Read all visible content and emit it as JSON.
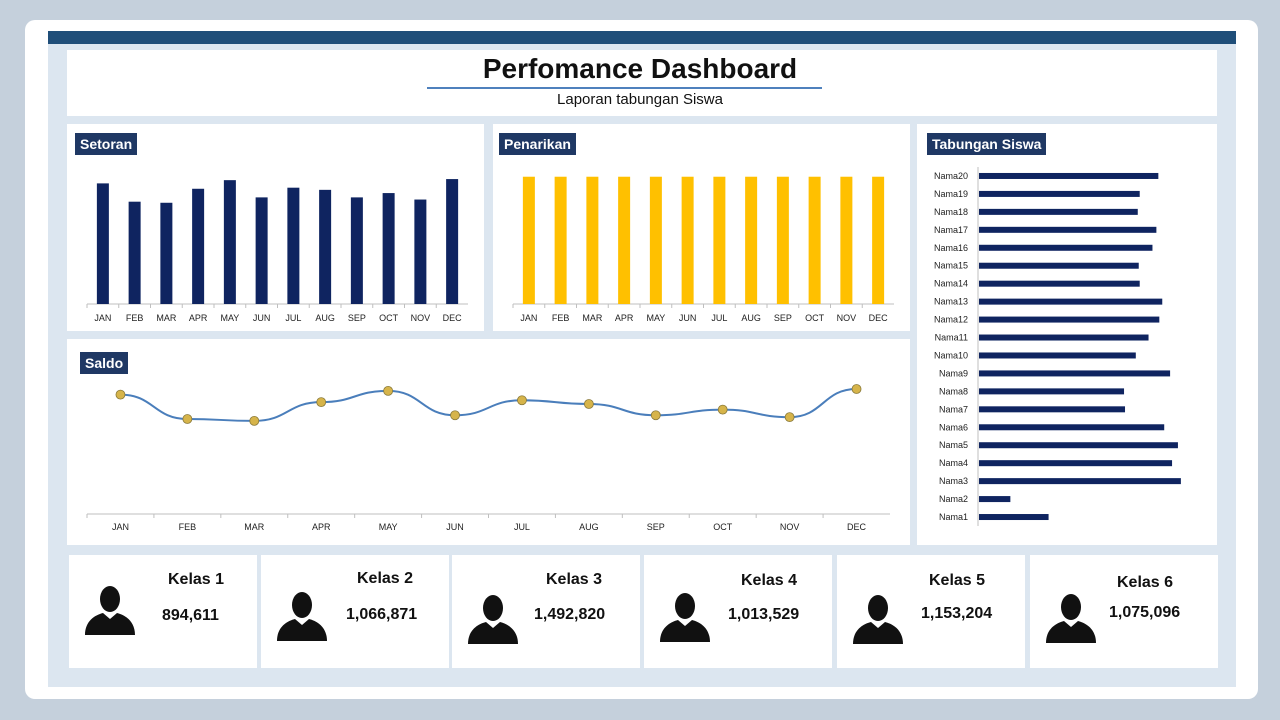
{
  "header": {
    "title": "Perfomance Dashboard",
    "subtitle": "Laporan tabungan Siswa"
  },
  "setoran": {
    "title": "Setoran",
    "color": "#0f2460",
    "chart_data": {
      "type": "bar",
      "categories": [
        "JAN",
        "FEB",
        "MAR",
        "APR",
        "MAY",
        "JUN",
        "JUL",
        "AUG",
        "SEP",
        "OCT",
        "NOV",
        "DEC"
      ],
      "values": [
        112,
        95,
        94,
        107,
        115,
        99,
        108,
        106,
        99,
        103,
        97,
        116
      ],
      "ylim": [
        0,
        130
      ]
    }
  },
  "penarikan": {
    "title": "Penarikan",
    "color": "#ffc000",
    "chart_data": {
      "type": "bar",
      "categories": [
        "JAN",
        "FEB",
        "MAR",
        "APR",
        "MAY",
        "JUN",
        "JUL",
        "AUG",
        "SEP",
        "OCT",
        "NOV",
        "DEC"
      ],
      "values": [
        100,
        100,
        100,
        100,
        100,
        100,
        100,
        100,
        100,
        100,
        100,
        100
      ],
      "ylim": [
        0,
        110
      ]
    }
  },
  "saldo": {
    "title": "Saldo",
    "line_color": "#4a7ebb",
    "marker_color": "#d6b44a",
    "chart_data": {
      "type": "line",
      "categories": [
        "JAN",
        "FEB",
        "MAR",
        "APR",
        "MAY",
        "JUN",
        "JUL",
        "AUG",
        "SEP",
        "OCT",
        "NOV",
        "DEC"
      ],
      "values": [
        89,
        76,
        75,
        85,
        91,
        78,
        86,
        84,
        78,
        81,
        77,
        92
      ],
      "ylim": [
        0,
        100
      ]
    }
  },
  "tabungan": {
    "title": "Tabungan  Siswa",
    "color": "#0f2460",
    "chart_data": {
      "type": "bar",
      "orientation": "horizontal",
      "categories": [
        "Nama20",
        "Nama19",
        "Nama18",
        "Nama17",
        "Nama16",
        "Nama15",
        "Nama14",
        "Nama13",
        "Nama12",
        "Nama11",
        "Nama10",
        "Nama9",
        "Nama8",
        "Nama7",
        "Nama6",
        "Nama5",
        "Nama4",
        "Nama3",
        "Nama2",
        "Nama1"
      ],
      "values": [
        183,
        164,
        162,
        181,
        177,
        163,
        164,
        187,
        184,
        173,
        160,
        195,
        148,
        149,
        189,
        203,
        197,
        206,
        32,
        71
      ],
      "xlim": [
        0,
        215
      ]
    }
  },
  "kelas": [
    {
      "label": "Kelas 1",
      "value": "894,611"
    },
    {
      "label": "Kelas 2",
      "value": "1,066,871"
    },
    {
      "label": "Kelas 3",
      "value": "1,492,820"
    },
    {
      "label": "Kelas 4",
      "value": "1,013,529"
    },
    {
      "label": "Kelas 5",
      "value": "1,153,204"
    },
    {
      "label": "Kelas 6",
      "value": "1,075,096"
    }
  ]
}
